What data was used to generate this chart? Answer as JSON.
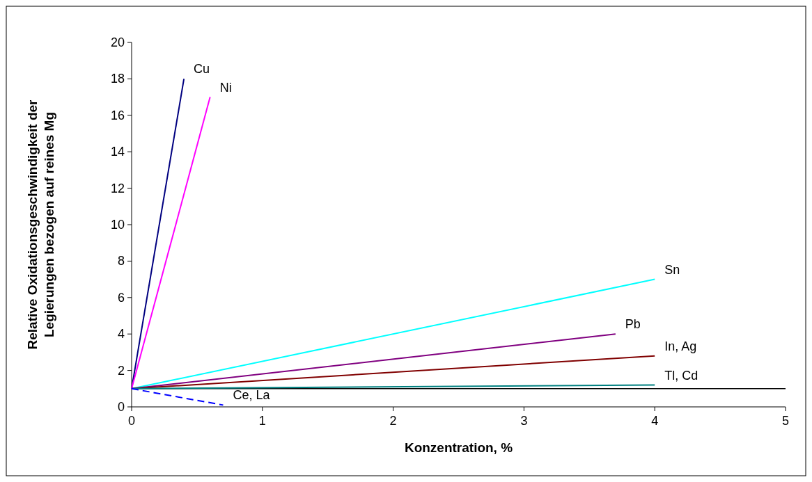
{
  "chart_data": {
    "type": "line",
    "xlabel": "Konzentration, %",
    "ylabel": "Relative Oxidationsgeschwindigkeit der\nLegierungen bezogen auf reines Mg",
    "xlim": [
      0,
      5
    ],
    "xticks": [
      0,
      1,
      2,
      3,
      4,
      5
    ],
    "ylim": [
      0,
      20
    ],
    "yticks": [
      0,
      2,
      4,
      6,
      8,
      10,
      12,
      14,
      16,
      18,
      20
    ],
    "grid": false,
    "marker": "none",
    "ref_lines": [
      {
        "axis": "y",
        "value": 1,
        "color": "#000000"
      }
    ],
    "series": [
      {
        "name": "Cu",
        "color": "#000080",
        "x": [
          0,
          0.4
        ],
        "values": [
          1,
          18
        ]
      },
      {
        "name": "Ni",
        "color": "#ff00ff",
        "x": [
          0,
          0.6
        ],
        "values": [
          1,
          17
        ]
      },
      {
        "name": "Sn",
        "color": "#00ffff",
        "x": [
          0,
          4
        ],
        "values": [
          1,
          7
        ]
      },
      {
        "name": "Pb",
        "color": "#800080",
        "x": [
          0,
          3.7
        ],
        "values": [
          1,
          4
        ]
      },
      {
        "name": "In, Ag",
        "color": "#800000",
        "x": [
          0,
          4
        ],
        "values": [
          1,
          2.8
        ]
      },
      {
        "name": "Tl, Cd",
        "color": "#008080",
        "x": [
          0,
          4
        ],
        "values": [
          1,
          1.2
        ]
      },
      {
        "name": "Ce, La",
        "color": "#0000ff",
        "x": [
          0,
          0.7
        ],
        "values": [
          1,
          0.1
        ],
        "line_style": "dashed"
      }
    ]
  }
}
